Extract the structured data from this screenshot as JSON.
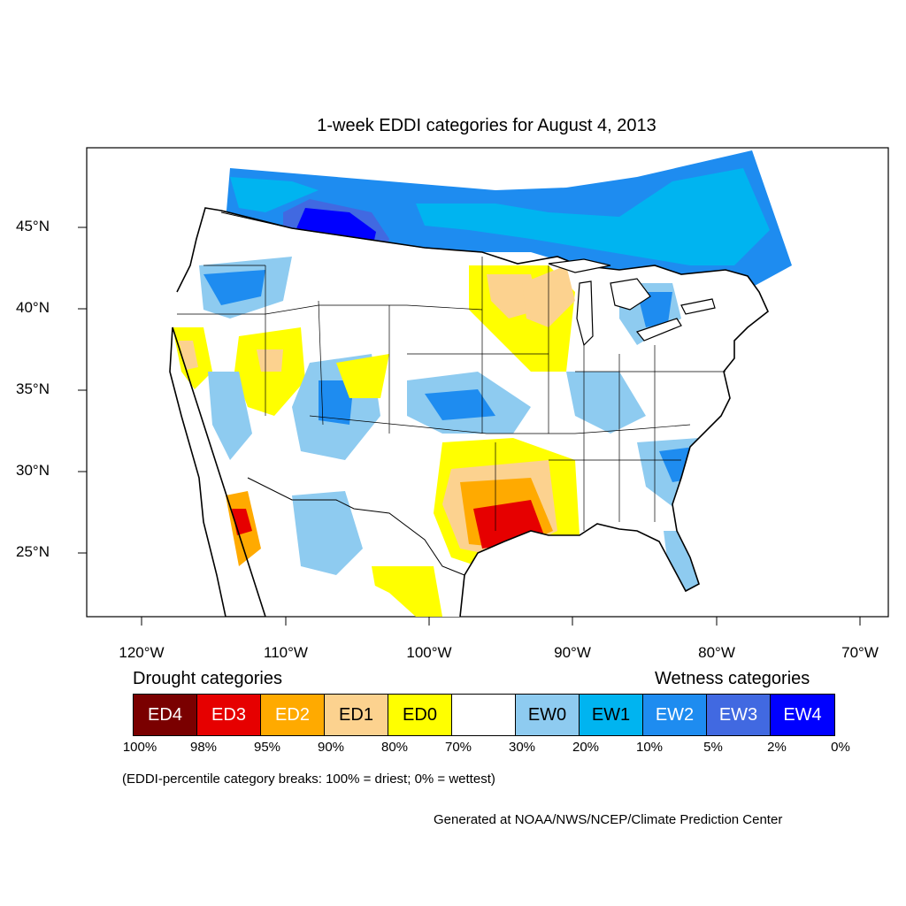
{
  "title": "1-week EDDI categories for August 4, 2013",
  "lat_labels": [
    "45°N",
    "40°N",
    "35°N",
    "30°N",
    "25°N"
  ],
  "lon_labels": [
    "120°W",
    "110°W",
    "100°W",
    "90°W",
    "80°W",
    "70°W"
  ],
  "legend": {
    "drought_heading": "Drought categories",
    "wetness_heading": "Wetness categories",
    "categories": [
      {
        "label": "ED4",
        "color": "#7a0000",
        "text_color": "#ffffff"
      },
      {
        "label": "ED3",
        "color": "#e60000",
        "text_color": "#ffffff"
      },
      {
        "label": "ED2",
        "color": "#ffaa00",
        "text_color": "#ffffff"
      },
      {
        "label": "ED1",
        "color": "#fcd28f",
        "text_color": "#000000"
      },
      {
        "label": "ED0",
        "color": "#ffff00",
        "text_color": "#000000"
      },
      {
        "label": "",
        "color": "#ffffff",
        "text_color": "#000000"
      },
      {
        "label": "EW0",
        "color": "#8ecbf0",
        "text_color": "#000000"
      },
      {
        "label": "EW1",
        "color": "#00b4f0",
        "text_color": "#000000"
      },
      {
        "label": "EW2",
        "color": "#1e8cf0",
        "text_color": "#ffffff"
      },
      {
        "label": "EW3",
        "color": "#4169e1",
        "text_color": "#ffffff"
      },
      {
        "label": "EW4",
        "color": "#0000ff",
        "text_color": "#ffffff"
      }
    ],
    "percent_breaks": [
      "100%",
      "98%",
      "95%",
      "90%",
      "80%",
      "70%",
      "30%",
      "20%",
      "10%",
      "5%",
      "2%",
      "0%"
    ]
  },
  "note": "(EDDI-percentile category breaks: 100% = driest; 0% = wettest)",
  "credit": "Generated at NOAA/NWS/NCEP/Climate Prediction Center"
}
